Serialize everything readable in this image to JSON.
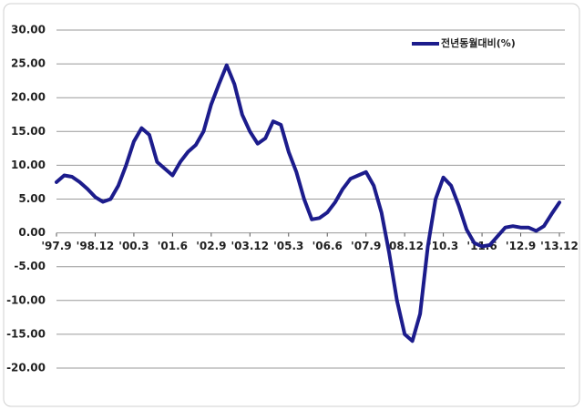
{
  "chart_data": {
    "type": "line",
    "x": [
      "1997-09",
      "1997-12",
      "1998-03",
      "1998-06",
      "1998-09",
      "1998-12",
      "1999-03",
      "1999-06",
      "1999-09",
      "1999-12",
      "2000-03",
      "2000-06",
      "2000-09",
      "2000-12",
      "2001-03",
      "2001-06",
      "2001-09",
      "2001-12",
      "2002-03",
      "2002-06",
      "2002-09",
      "2002-12",
      "2003-03",
      "2003-06",
      "2003-09",
      "2003-12",
      "2004-03",
      "2004-06",
      "2004-09",
      "2004-12",
      "2005-03",
      "2005-06",
      "2005-09",
      "2005-12",
      "2006-03",
      "2006-06",
      "2006-09",
      "2006-12",
      "2007-03",
      "2007-06",
      "2007-09",
      "2007-12",
      "2008-03",
      "2008-06",
      "2008-09",
      "2008-12",
      "2009-03",
      "2009-06",
      "2009-09",
      "2009-12",
      "2010-03",
      "2010-06",
      "2010-09",
      "2010-12",
      "2011-03",
      "2011-06",
      "2011-09",
      "2011-12",
      "2012-03",
      "2012-06",
      "2012-09",
      "2012-12",
      "2013-03",
      "2013-06",
      "2013-09",
      "2013-12"
    ],
    "series": [
      {
        "name": "전년동월대비(%)",
        "color": "#1c1c8c",
        "values": [
          7.5,
          8.5,
          8.3,
          7.5,
          6.5,
          5.3,
          4.6,
          5.0,
          7.0,
          10.0,
          13.5,
          15.5,
          14.5,
          10.5,
          9.5,
          8.5,
          10.5,
          12.0,
          13.0,
          15.0,
          19.0,
          22.0,
          24.8,
          22.0,
          17.5,
          15.0,
          13.2,
          14.0,
          16.5,
          16.0,
          12.0,
          9.0,
          5.0,
          2.0,
          2.2,
          3.0,
          4.5,
          6.5,
          8.0,
          8.5,
          9.0,
          7.0,
          3.0,
          -3.0,
          -10.0,
          -15.0,
          -16.0,
          -12.0,
          -2.0,
          5.0,
          8.2,
          7.0,
          4.0,
          0.5,
          -1.5,
          -2.0,
          -1.8,
          -0.5,
          0.8,
          1.0,
          0.8,
          0.8,
          0.3,
          1.0,
          2.8,
          4.5
        ]
      }
    ],
    "xticks": [
      {
        "value": "1997-09",
        "label": "'97.9"
      },
      {
        "value": "1998-12",
        "label": "'98.12"
      },
      {
        "value": "2000-03",
        "label": "'00.3"
      },
      {
        "value": "2001-06",
        "label": "'01.6"
      },
      {
        "value": "2002-09",
        "label": "'02.9"
      },
      {
        "value": "2003-12",
        "label": "'03.12"
      },
      {
        "value": "2005-03",
        "label": "'05.3"
      },
      {
        "value": "2006-06",
        "label": "'06.6"
      },
      {
        "value": "2007-09",
        "label": "'07.9"
      },
      {
        "value": "2008-12",
        "label": "'08.12"
      },
      {
        "value": "2010-03",
        "label": "'10.3"
      },
      {
        "value": "2011-06",
        "label": "'11.6"
      },
      {
        "value": "2012-09",
        "label": "'12.9"
      },
      {
        "value": "2013-12",
        "label": "'13.12"
      }
    ],
    "ylim": [
      -20,
      30
    ],
    "yticks": [
      {
        "value": 30,
        "label": "30.00"
      },
      {
        "value": 25,
        "label": "25.00"
      },
      {
        "value": 20,
        "label": "20.00"
      },
      {
        "value": 15,
        "label": "15.00"
      },
      {
        "value": 10,
        "label": "10.00"
      },
      {
        "value": 5,
        "label": "5.00"
      },
      {
        "value": 0,
        "label": "0.00"
      },
      {
        "value": -5,
        "label": "-5.00"
      },
      {
        "value": -10,
        "label": "-10.00"
      },
      {
        "value": -15,
        "label": "-15.00"
      },
      {
        "value": -20,
        "label": "-20.00"
      }
    ],
    "grid": true,
    "legend": "top-right"
  }
}
